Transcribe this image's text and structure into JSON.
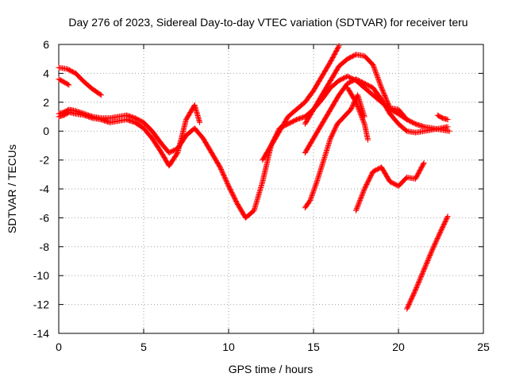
{
  "chart_data": {
    "type": "scatter",
    "title": "Day 276 of 2023, Sidereal Day-to-day VTEC variation (SDTVAR) for receiver teru",
    "xlabel": "GPS time / hours",
    "ylabel": "SDTVAR / TECUs",
    "xlim": [
      0,
      25
    ],
    "ylim": [
      -14,
      6
    ],
    "xticks": [
      "0",
      "5",
      "10",
      "15",
      "20",
      "25"
    ],
    "yticks": [
      "-14",
      "-12",
      "-10",
      "-8",
      "-6",
      "-4",
      "-2",
      "0",
      "2",
      "4",
      "6"
    ],
    "grid": true,
    "marker": "+",
    "series_color": "#ff0000",
    "series": [
      {
        "x": [
          0,
          0.3,
          0.6,
          1,
          1.5,
          2,
          2.5,
          3,
          3.5,
          4,
          4.5,
          5,
          5.5,
          6,
          6.5,
          7,
          7.5,
          8,
          8.5,
          9,
          9.5,
          10,
          10.5,
          11,
          11.5,
          12,
          12.5,
          13,
          13.5,
          14,
          14.5,
          15,
          15.5,
          16,
          16.5,
          17,
          17.5,
          18,
          18.5,
          19,
          19.5,
          20,
          20.5,
          21,
          21.5,
          22,
          22.5,
          23
        ],
        "y": [
          1.2,
          1.3,
          1.5,
          1.4,
          1.2,
          1.0,
          0.9,
          0.9,
          1.0,
          1.1,
          0.9,
          0.6,
          0.0,
          -0.8,
          -1.5,
          -1.2,
          -0.3,
          0.2,
          -0.5,
          -1.5,
          -2.5,
          -3.8,
          -5.0,
          -6.0,
          -5.5,
          -3.5,
          -1.0,
          0.2,
          0.5,
          0.8,
          1.0,
          1.5,
          2.2,
          3.0,
          3.5,
          3.8,
          3.5,
          3.0,
          2.5,
          2.0,
          1.5,
          1.2,
          0.8,
          0.5,
          0.3,
          0.2,
          0.1,
          0.0
        ]
      },
      {
        "x": [
          0,
          0.3,
          0.6,
          1,
          1.5,
          2,
          2.5,
          3,
          3.5,
          4,
          4.5,
          5,
          5.5,
          6,
          6.5,
          7,
          7.5,
          8,
          8.3
        ],
        "y": [
          1.0,
          1.1,
          1.3,
          1.2,
          1.1,
          0.9,
          0.8,
          0.6,
          0.7,
          0.8,
          0.6,
          0.2,
          -0.5,
          -1.4,
          -2.4,
          -1.5,
          0.8,
          1.8,
          0.6
        ]
      },
      {
        "x": [
          0,
          0.5,
          1,
          1.5,
          2,
          2.5
        ],
        "y": [
          4.4,
          4.3,
          4.0,
          3.4,
          2.9,
          2.5
        ]
      },
      {
        "x": [
          0,
          0.3,
          0.6
        ],
        "y": [
          3.6,
          3.4,
          3.2
        ]
      },
      {
        "x": [
          12,
          12.5,
          13,
          13.5,
          14,
          14.5,
          15,
          15.5,
          16,
          16.5
        ],
        "y": [
          -2.0,
          -1.0,
          0.0,
          1.0,
          1.5,
          2.0,
          2.8,
          3.8,
          4.8,
          5.9
        ]
      },
      {
        "x": [
          14.5,
          15,
          15.5,
          16,
          16.5,
          17,
          17.5,
          18,
          18.5,
          19,
          19.5,
          20,
          20.5
        ],
        "y": [
          0.5,
          1.5,
          2.5,
          3.5,
          4.5,
          5.0,
          5.3,
          5.2,
          4.6,
          3.0,
          1.6,
          1.5,
          0.8
        ]
      },
      {
        "x": [
          14.5,
          15,
          15.5,
          16,
          16.5,
          17,
          17.5,
          18,
          18.5,
          19,
          19.5,
          20,
          20.5,
          21,
          21.5,
          22,
          22.5,
          22.9
        ],
        "y": [
          -1.5,
          -0.5,
          0.5,
          1.5,
          2.5,
          3.3,
          3.6,
          3.3,
          3.0,
          2.2,
          1.2,
          0.5,
          0.0,
          -0.1,
          0.0,
          0.1,
          0.2,
          0.3
        ]
      },
      {
        "x": [
          14.5,
          14.8,
          15.2,
          15.6,
          16,
          16.4,
          16.8,
          17.2,
          17.6,
          18.0
        ],
        "y": [
          -5.3,
          -4.8,
          -3.5,
          -2.0,
          -0.5,
          0.5,
          1.0,
          1.5,
          2.5,
          1.0
        ]
      },
      {
        "x": [
          17.5,
          18,
          18.5,
          19,
          19.5,
          20,
          20.5,
          21,
          21.5
        ],
        "y": [
          -5.5,
          -4.0,
          -2.8,
          -2.5,
          -3.5,
          -3.8,
          -3.2,
          -3.3,
          -2.2
        ]
      },
      {
        "x": [
          20.5,
          21,
          21.5,
          22,
          22.5,
          22.9
        ],
        "y": [
          -12.3,
          -11.0,
          -9.6,
          -8.2,
          -6.9,
          -5.9
        ]
      },
      {
        "x": [
          17.0,
          17.5,
          18.0,
          18.2
        ],
        "y": [
          3.0,
          2.0,
          0.5,
          -0.6
        ]
      },
      {
        "x": [
          22.3,
          22.6,
          22.9
        ],
        "y": [
          1.1,
          0.9,
          0.8
        ]
      }
    ]
  }
}
